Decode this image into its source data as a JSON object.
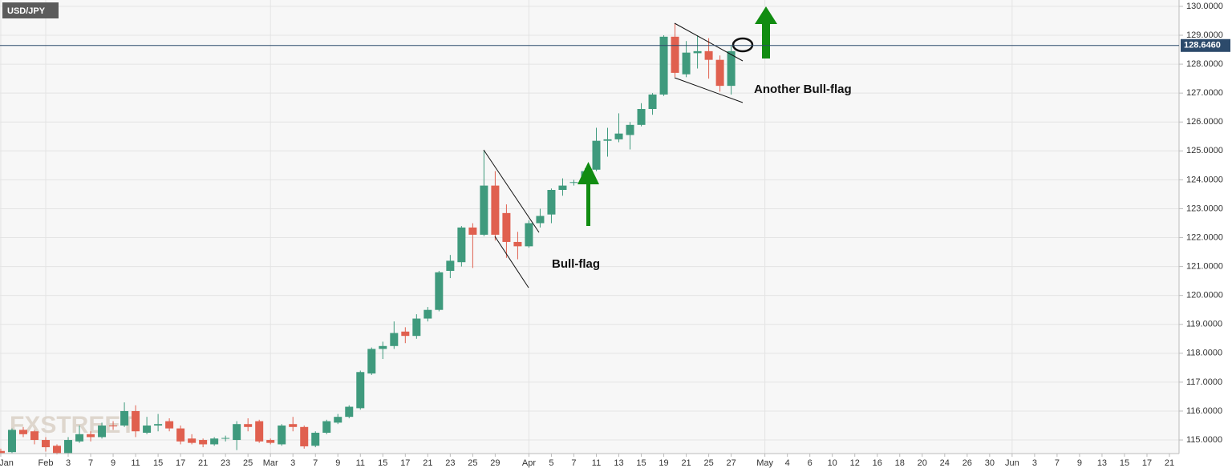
{
  "chart_data": {
    "type": "candlestick",
    "title": "USD/JPY",
    "watermark": "FXSTREET",
    "categories": [
      "Jan",
      null,
      null,
      null,
      "Feb",
      null,
      "3",
      null,
      "7",
      null,
      "9",
      null,
      "11",
      null,
      "15",
      null,
      "17",
      null,
      "21",
      null,
      "23",
      null,
      "25",
      null,
      "Mar",
      null,
      "3",
      null,
      "7",
      null,
      "9",
      null,
      "11",
      null,
      "15",
      null,
      "17",
      null,
      "21",
      null,
      "23",
      null,
      "25",
      null,
      "29",
      null,
      null,
      "Apr",
      null,
      "5",
      null,
      "7",
      null,
      "11",
      null,
      "13",
      null,
      "15",
      null,
      "19",
      null,
      "21",
      null,
      "25",
      null,
      "27",
      null,
      null,
      "May",
      null,
      "4",
      null,
      "6",
      null,
      "10",
      null,
      "12",
      null,
      "16",
      null,
      "18",
      null,
      "20",
      null,
      "24",
      null,
      "26",
      null,
      "30",
      null,
      "Jun",
      null,
      "3",
      null,
      "7",
      null,
      "9",
      null,
      "13",
      null,
      "15",
      null,
      "17",
      null,
      "21"
    ],
    "open": [
      114.62,
      114.58,
      115.35,
      115.3,
      115.0,
      114.8,
      114.55,
      114.95,
      115.2,
      115.1,
      115.5,
      115.5,
      116.0,
      115.25,
      115.5,
      115.65,
      115.4,
      115.05,
      115.0,
      114.85,
      115.05,
      115.0,
      115.55,
      115.65,
      115.0,
      114.85,
      115.55,
      115.45,
      114.8,
      115.25,
      115.6,
      115.8,
      116.1,
      117.3,
      118.15,
      118.25,
      118.75,
      118.6,
      119.2,
      119.5,
      120.85,
      121.15,
      122.35,
      122.1,
      123.8,
      122.85,
      121.85,
      121.7,
      122.5,
      122.8,
      123.65,
      123.9,
      123.9,
      124.35,
      125.35,
      125.4,
      125.55,
      125.9,
      126.45,
      126.95,
      128.95,
      127.65,
      128.38,
      128.45,
      128.15,
      127.25,
      null,
      null,
      null,
      null,
      null,
      null,
      null,
      null,
      null,
      null,
      null,
      null,
      null,
      null,
      null,
      null,
      null,
      null,
      null,
      null,
      null,
      null,
      null,
      null,
      null,
      null,
      null,
      null,
      null,
      null,
      null,
      null,
      null,
      null,
      null,
      null,
      null,
      null,
      null
    ],
    "high": [
      114.7,
      115.4,
      115.45,
      115.35,
      115.1,
      114.85,
      115.1,
      115.5,
      115.3,
      115.6,
      115.65,
      116.3,
      116.2,
      115.8,
      115.9,
      115.75,
      115.5,
      115.2,
      115.05,
      115.1,
      115.15,
      115.65,
      115.75,
      115.7,
      115.05,
      115.55,
      115.8,
      115.5,
      115.3,
      115.7,
      115.9,
      116.2,
      117.4,
      118.2,
      118.4,
      119.1,
      118.9,
      119.35,
      119.6,
      120.85,
      121.4,
      122.4,
      122.5,
      125.0,
      124.3,
      123.15,
      122.2,
      122.6,
      123.0,
      123.7,
      124.05,
      124.0,
      124.4,
      125.8,
      125.8,
      126.3,
      126.0,
      126.65,
      127.0,
      129.0,
      129.4,
      128.8,
      129.0,
      128.9,
      128.3,
      128.65,
      null,
      null,
      null,
      null,
      null,
      null,
      null,
      null,
      null,
      null,
      null,
      null,
      null,
      null,
      null,
      null,
      null,
      null,
      null,
      null,
      null,
      null,
      null,
      null,
      null,
      null,
      null,
      null,
      null,
      null,
      null,
      null,
      null,
      null,
      null,
      null,
      null,
      null,
      null
    ],
    "low": [
      114.5,
      114.55,
      115.1,
      114.85,
      114.6,
      114.5,
      114.5,
      114.9,
      114.95,
      115.05,
      115.35,
      115.45,
      115.1,
      115.2,
      115.3,
      115.3,
      114.85,
      114.85,
      114.75,
      114.8,
      114.95,
      114.65,
      115.3,
      114.9,
      114.85,
      114.8,
      115.3,
      114.7,
      114.75,
      115.2,
      115.55,
      115.75,
      116.05,
      117.25,
      117.8,
      118.15,
      118.35,
      118.5,
      119.1,
      119.45,
      120.6,
      121.0,
      120.95,
      122.05,
      121.9,
      121.3,
      121.25,
      121.65,
      122.35,
      122.5,
      123.45,
      123.8,
      123.85,
      124.3,
      124.8,
      125.3,
      125.05,
      125.85,
      126.25,
      126.9,
      127.55,
      127.55,
      127.85,
      127.5,
      127.05,
      126.95,
      null,
      null,
      null,
      null,
      null,
      null,
      null,
      null,
      null,
      null,
      null,
      null,
      null,
      null,
      null,
      null,
      null,
      null,
      null,
      null,
      null,
      null,
      null,
      null,
      null,
      null,
      null,
      null,
      null,
      null,
      null,
      null,
      null,
      null,
      null,
      null,
      null,
      null,
      null
    ],
    "close": [
      114.55,
      115.35,
      115.2,
      115.0,
      114.75,
      114.55,
      115.0,
      115.2,
      115.1,
      115.5,
      115.47,
      116.0,
      115.3,
      115.5,
      115.55,
      115.4,
      114.95,
      114.9,
      114.85,
      115.05,
      115.07,
      115.55,
      115.45,
      114.95,
      114.9,
      115.5,
      115.45,
      114.78,
      115.25,
      115.65,
      115.8,
      116.15,
      117.35,
      118.15,
      118.25,
      118.7,
      118.6,
      119.2,
      119.5,
      120.8,
      121.2,
      122.35,
      122.1,
      123.8,
      122.1,
      121.85,
      121.7,
      122.5,
      122.75,
      123.65,
      123.8,
      123.92,
      124.3,
      125.35,
      125.4,
      125.6,
      125.9,
      126.45,
      126.95,
      128.95,
      127.7,
      128.4,
      128.45,
      128.15,
      127.25,
      128.45,
      null,
      null,
      null,
      null,
      null,
      null,
      null,
      null,
      null,
      null,
      null,
      null,
      null,
      null,
      null,
      null,
      null,
      null,
      null,
      null,
      null,
      null,
      null,
      null,
      null,
      null,
      null,
      null,
      null,
      null,
      null,
      null,
      null,
      null,
      null,
      null,
      null,
      null,
      null
    ],
    "up_color": "#3f9a7d",
    "down_color": "#e0604f",
    "ylim": [
      114.53,
      130.22
    ],
    "yticks": [
      {
        "value": 115,
        "label": "115.0000"
      },
      {
        "value": 116,
        "label": "116.0000"
      },
      {
        "value": 117,
        "label": "117.0000"
      },
      {
        "value": 118,
        "label": "118.0000"
      },
      {
        "value": 119,
        "label": "119.0000"
      },
      {
        "value": 120,
        "label": "120.0000"
      },
      {
        "value": 121,
        "label": "121.0000"
      },
      {
        "value": 122,
        "label": "122.0000"
      },
      {
        "value": 123,
        "label": "123.0000"
      },
      {
        "value": 124,
        "label": "124.0000"
      },
      {
        "value": 125,
        "label": "125.0000"
      },
      {
        "value": 126,
        "label": "126.0000"
      },
      {
        "value": 127,
        "label": "127.0000"
      },
      {
        "value": 128,
        "label": "128.0000"
      },
      {
        "value": 129,
        "label": "129.0000"
      },
      {
        "value": 130,
        "label": "130.0000"
      }
    ],
    "grid": true,
    "price_line": {
      "value": 128.646,
      "label": "128.6460",
      "color": "#2c4a6b"
    },
    "annotations": [
      "Bull-flag",
      "Another Bull-flag"
    ]
  }
}
